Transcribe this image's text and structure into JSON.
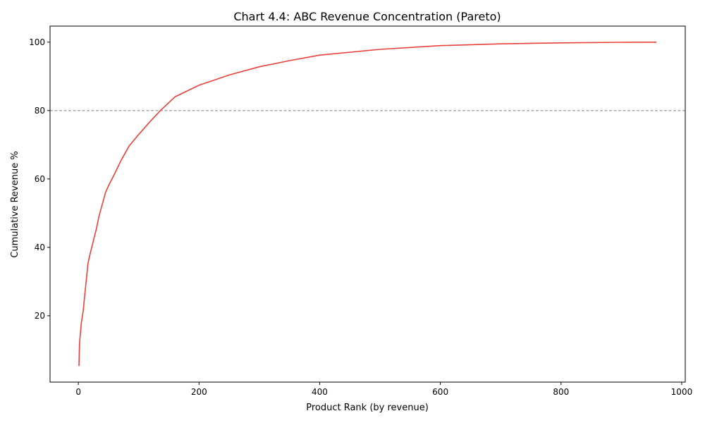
{
  "chart_data": {
    "type": "line",
    "title": "Chart 4.4: ABC Revenue Concentration (Pareto)",
    "xlabel": "Product Rank (by revenue)",
    "ylabel": "Cumulative Revenue %",
    "xlim": [
      -46.9,
      1005.9
    ],
    "ylim": [
      0.6,
      104.7
    ],
    "xticks": [
      0,
      200,
      400,
      600,
      800,
      1000
    ],
    "yticks": [
      20,
      40,
      60,
      80,
      100
    ],
    "grid": false,
    "reference_line": {
      "y": 80,
      "style": "dashed",
      "color": "#808080"
    },
    "series": [
      {
        "color": "#e8413c",
        "x": [
          1,
          2,
          5,
          8,
          10,
          16,
          20,
          30,
          34,
          45,
          50,
          60,
          71,
          84,
          100,
          120,
          136,
          160,
          200,
          250,
          300,
          350,
          400,
          500,
          600,
          700,
          800,
          900,
          958
        ],
        "y": [
          5.3,
          12,
          18,
          21.4,
          25,
          35.3,
          38.5,
          45.5,
          48.9,
          56,
          58,
          61.5,
          65.5,
          69.6,
          73,
          77,
          80,
          84,
          87.4,
          90.4,
          92.8,
          94.6,
          96.2,
          97.9,
          99.0,
          99.5,
          99.8,
          99.95,
          100
        ]
      }
    ]
  }
}
